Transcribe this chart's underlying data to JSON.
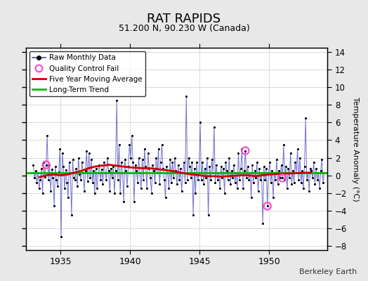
{
  "title": "RAT RAPIDS",
  "subtitle": "51.200 N, 90.230 W (Canada)",
  "ylabel": "Temperature Anomaly (°C)",
  "credit": "Berkeley Earth",
  "xlim": [
    1932.5,
    1954.2
  ],
  "ylim": [
    -8.5,
    14.5
  ],
  "yticks": [
    -8,
    -6,
    -4,
    -2,
    0,
    2,
    4,
    6,
    8,
    10,
    12,
    14
  ],
  "xticks": [
    1935,
    1940,
    1945,
    1950
  ],
  "bg_color": "#e8e8e8",
  "plot_bg_color": "#ffffff",
  "line_color": "#4444bb",
  "dot_color": "#000000",
  "ma_color": "#cc0000",
  "trend_color": "#00bb00",
  "qc_color": "#ff44cc",
  "trend_value": 0.3,
  "raw_data": [
    1933.042,
    1.2,
    1933.125,
    -0.3,
    1933.208,
    0.5,
    1933.292,
    -0.8,
    1933.375,
    0.3,
    1933.458,
    -1.5,
    1933.542,
    -0.5,
    1933.625,
    0.8,
    1933.708,
    -2.0,
    1933.792,
    1.5,
    1933.875,
    -0.2,
    1933.958,
    1.2,
    1934.042,
    4.5,
    1934.125,
    -0.5,
    1934.208,
    1.2,
    1934.292,
    -1.8,
    1934.375,
    0.7,
    1934.458,
    -0.3,
    1934.542,
    -3.5,
    1934.625,
    1.0,
    1934.708,
    -0.5,
    1934.792,
    -1.2,
    1934.875,
    0.4,
    1934.958,
    3.0,
    1935.042,
    -7.0,
    1935.125,
    2.5,
    1935.208,
    1.0,
    1935.292,
    -1.5,
    1935.375,
    0.6,
    1935.458,
    -0.8,
    1935.542,
    -2.5,
    1935.625,
    1.5,
    1935.708,
    0.3,
    1935.792,
    -4.5,
    1935.875,
    1.8,
    1935.958,
    -0.3,
    1936.042,
    -0.5,
    1936.125,
    0.8,
    1936.208,
    -1.2,
    1936.292,
    2.0,
    1936.375,
    0.1,
    1936.458,
    -0.5,
    1936.542,
    1.5,
    1936.625,
    0.3,
    1936.708,
    -1.8,
    1936.792,
    0.5,
    1936.875,
    2.8,
    1936.958,
    -0.7,
    1937.042,
    2.5,
    1937.125,
    -0.3,
    1937.208,
    1.8,
    1937.292,
    -0.8,
    1937.375,
    0.5,
    1937.458,
    -2.0,
    1937.542,
    0.8,
    1937.625,
    -1.5,
    1937.708,
    0.3,
    1937.792,
    1.2,
    1937.875,
    -0.5,
    1937.958,
    0.7,
    1938.042,
    -1.0,
    1938.125,
    1.5,
    1938.208,
    0.3,
    1938.292,
    -0.5,
    1938.375,
    2.0,
    1938.458,
    0.5,
    1938.542,
    -1.8,
    1938.625,
    0.8,
    1938.708,
    -0.3,
    1938.792,
    1.0,
    1938.875,
    -2.0,
    1938.958,
    0.5,
    1939.042,
    8.5,
    1939.125,
    -0.5,
    1939.208,
    3.5,
    1939.292,
    -2.0,
    1939.375,
    1.5,
    1939.458,
    0.3,
    1939.542,
    -3.0,
    1939.625,
    1.8,
    1939.708,
    0.5,
    1939.792,
    -1.2,
    1939.875,
    1.0,
    1939.958,
    3.5,
    1940.042,
    2.0,
    1940.125,
    4.5,
    1940.208,
    1.5,
    1940.292,
    -3.0,
    1940.375,
    1.2,
    1940.458,
    0.5,
    1940.542,
    -0.8,
    1940.625,
    2.0,
    1940.708,
    0.3,
    1940.792,
    -1.5,
    1940.875,
    1.8,
    1940.958,
    -0.5,
    1941.042,
    3.0,
    1941.125,
    1.0,
    1941.208,
    -1.5,
    1941.292,
    2.5,
    1941.375,
    0.8,
    1941.458,
    -0.3,
    1941.542,
    -2.0,
    1941.625,
    1.2,
    1941.708,
    0.5,
    1941.792,
    -0.8,
    1941.875,
    2.0,
    1941.958,
    0.3,
    1942.042,
    3.0,
    1942.125,
    -1.0,
    1942.208,
    1.5,
    1942.292,
    3.5,
    1942.375,
    0.8,
    1942.458,
    -0.5,
    1942.542,
    -2.5,
    1942.625,
    1.0,
    1942.708,
    0.3,
    1942.792,
    -1.5,
    1942.875,
    1.8,
    1942.958,
    -0.8,
    1943.042,
    1.5,
    1943.125,
    -0.3,
    1943.208,
    2.0,
    1943.292,
    0.5,
    1943.375,
    -1.0,
    1943.458,
    1.2,
    1943.542,
    -0.5,
    1943.625,
    0.8,
    1943.708,
    -1.8,
    1943.792,
    0.3,
    1943.875,
    1.5,
    1943.958,
    -0.8,
    1944.042,
    9.0,
    1944.125,
    -0.5,
    1944.208,
    2.0,
    1944.292,
    1.0,
    1944.375,
    -0.3,
    1944.458,
    1.5,
    1944.542,
    -4.5,
    1944.625,
    0.8,
    1944.708,
    -2.0,
    1944.792,
    1.5,
    1944.875,
    -0.5,
    1944.958,
    0.3,
    1945.042,
    6.0,
    1945.125,
    -0.5,
    1945.208,
    1.5,
    1945.292,
    -1.0,
    1945.375,
    0.8,
    1945.458,
    -0.3,
    1945.542,
    2.0,
    1945.625,
    -4.5,
    1945.708,
    1.0,
    1945.792,
    -0.5,
    1945.875,
    1.8,
    1945.958,
    0.3,
    1946.042,
    5.5,
    1946.125,
    -0.8,
    1946.208,
    1.2,
    1946.292,
    -0.5,
    1946.375,
    0.3,
    1946.458,
    -1.5,
    1946.542,
    1.0,
    1946.625,
    -0.3,
    1946.708,
    0.8,
    1946.792,
    -2.0,
    1946.875,
    1.5,
    1946.958,
    0.5,
    1947.042,
    -0.5,
    1947.125,
    2.0,
    1947.208,
    -1.0,
    1947.292,
    0.5,
    1947.375,
    -0.3,
    1947.458,
    1.2,
    1947.542,
    -0.8,
    1947.625,
    0.3,
    1947.708,
    -1.5,
    1947.792,
    2.5,
    1947.875,
    -0.5,
    1947.958,
    0.8,
    1948.042,
    3.0,
    1948.125,
    -1.5,
    1948.208,
    0.5,
    1948.292,
    2.8,
    1948.375,
    -0.3,
    1948.458,
    1.0,
    1948.542,
    -0.5,
    1948.625,
    0.3,
    1948.708,
    -2.5,
    1948.792,
    1.2,
    1948.875,
    -0.8,
    1948.958,
    0.5,
    1949.042,
    -0.3,
    1949.125,
    1.5,
    1949.208,
    -1.8,
    1949.292,
    0.8,
    1949.375,
    -0.5,
    1949.458,
    0.3,
    1949.542,
    -5.5,
    1949.625,
    1.0,
    1949.708,
    -0.5,
    1949.792,
    0.8,
    1949.875,
    -3.5,
    1949.958,
    0.3,
    1950.042,
    1.5,
    1950.125,
    -0.8,
    1950.208,
    0.5,
    1950.292,
    -2.5,
    1950.375,
    0.3,
    1950.458,
    -0.5,
    1950.542,
    1.8,
    1950.625,
    -1.0,
    1950.708,
    0.5,
    1950.792,
    -0.3,
    1950.875,
    1.2,
    1950.958,
    -0.3,
    1951.042,
    3.5,
    1951.125,
    -0.5,
    1951.208,
    1.0,
    1951.292,
    -1.5,
    1951.375,
    0.8,
    1951.458,
    -0.3,
    1951.542,
    2.5,
    1951.625,
    -1.0,
    1951.708,
    0.5,
    1951.792,
    -0.8,
    1951.875,
    1.5,
    1951.958,
    0.3,
    1952.042,
    3.0,
    1952.125,
    -0.5,
    1952.208,
    2.0,
    1952.292,
    -0.8,
    1952.375,
    0.5,
    1952.458,
    -1.5,
    1952.542,
    1.0,
    1952.625,
    6.5,
    1952.708,
    -0.5,
    1952.792,
    0.3,
    1952.875,
    -1.8,
    1952.958,
    0.8,
    1953.042,
    0.5,
    1953.125,
    -0.3,
    1953.208,
    1.5,
    1953.292,
    -1.0,
    1953.375,
    0.8,
    1953.458,
    -0.5,
    1953.542,
    0.3,
    1953.625,
    -1.5,
    1953.708,
    0.5,
    1953.792,
    1.8,
    1953.875,
    -0.8,
    1953.958,
    0.3
  ],
  "qc_fails": [
    [
      1933.958,
      1.2
    ],
    [
      1948.292,
      2.8
    ],
    [
      1949.875,
      -3.5
    ],
    [
      1950.958,
      -0.3
    ]
  ],
  "moving_avg": [
    [
      1933.5,
      -0.2
    ],
    [
      1934.0,
      0.0
    ],
    [
      1934.5,
      0.1
    ],
    [
      1935.0,
      0.0
    ],
    [
      1935.5,
      0.1
    ],
    [
      1936.0,
      0.3
    ],
    [
      1936.5,
      0.5
    ],
    [
      1937.0,
      0.8
    ],
    [
      1937.5,
      1.0
    ],
    [
      1938.0,
      1.1
    ],
    [
      1938.5,
      1.2
    ],
    [
      1939.0,
      1.1
    ],
    [
      1939.5,
      1.0
    ],
    [
      1940.0,
      0.9
    ],
    [
      1940.5,
      0.85
    ],
    [
      1941.0,
      0.8
    ],
    [
      1941.5,
      0.8
    ],
    [
      1942.0,
      0.7
    ],
    [
      1942.5,
      0.6
    ],
    [
      1943.0,
      0.5
    ],
    [
      1943.5,
      0.35
    ],
    [
      1944.0,
      0.2
    ],
    [
      1944.5,
      0.1
    ],
    [
      1945.0,
      0.0
    ],
    [
      1945.5,
      -0.1
    ],
    [
      1946.0,
      -0.1
    ],
    [
      1946.5,
      -0.15
    ],
    [
      1947.0,
      -0.1
    ],
    [
      1947.5,
      -0.05
    ],
    [
      1948.0,
      0.0
    ],
    [
      1948.5,
      0.0
    ],
    [
      1949.0,
      -0.1
    ],
    [
      1949.5,
      0.0
    ],
    [
      1950.0,
      0.1
    ],
    [
      1950.5,
      0.15
    ],
    [
      1951.0,
      0.2
    ],
    [
      1951.5,
      0.2
    ],
    [
      1952.0,
      0.25
    ],
    [
      1952.5,
      0.3
    ],
    [
      1953.0,
      0.3
    ]
  ]
}
